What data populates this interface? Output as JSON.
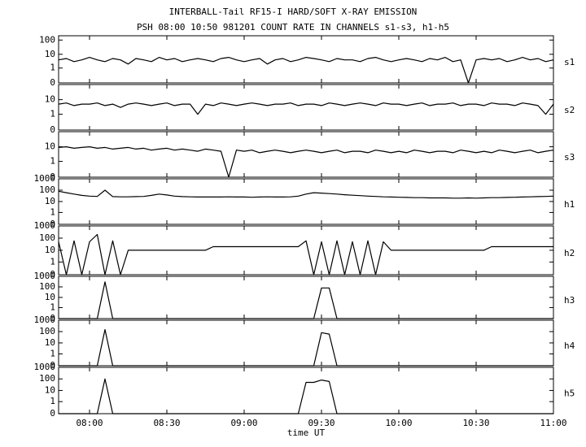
{
  "chart_data": {
    "type": "line",
    "title": "INTERBALL-Tail RF15-I HARD/SOFT X-RAY EMISSION",
    "subtitle": "PSH 08:00 10:50 981201  COUNT RATE IN CHANNELS s1-s3, h1-h5",
    "xlabel": "time UT",
    "xlim": [
      468,
      660
    ],
    "xticks": [
      {
        "value": 480,
        "label": "08:00"
      },
      {
        "value": 510,
        "label": "08:30"
      },
      {
        "value": 540,
        "label": "09:00"
      },
      {
        "value": 570,
        "label": "09:30"
      },
      {
        "value": 600,
        "label": "10:00"
      },
      {
        "value": 630,
        "label": "10:30"
      },
      {
        "value": 660,
        "label": "11:00"
      }
    ],
    "yscale": "log",
    "x": [
      468,
      471,
      474,
      477,
      480,
      483,
      486,
      489,
      492,
      495,
      498,
      501,
      504,
      507,
      510,
      513,
      516,
      519,
      522,
      525,
      528,
      531,
      534,
      537,
      540,
      543,
      546,
      549,
      552,
      555,
      558,
      561,
      564,
      567,
      570,
      573,
      576,
      579,
      582,
      585,
      588,
      591,
      594,
      597,
      600,
      603,
      606,
      609,
      612,
      615,
      618,
      621,
      624,
      627,
      630,
      633,
      636,
      639,
      642,
      645,
      648,
      651,
      654,
      657,
      660
    ],
    "series": [
      {
        "name": "s1",
        "color": "#000000",
        "ylim": [
          0,
          200
        ],
        "yticks": [
          0,
          1,
          10,
          100
        ],
        "values": [
          4,
          5,
          3,
          4,
          6,
          4,
          3,
          5,
          4,
          2,
          5,
          4,
          3,
          6,
          4,
          5,
          3,
          4,
          5,
          4,
          3,
          5,
          6,
          4,
          3,
          4,
          5,
          2,
          4,
          5,
          3,
          4,
          6,
          5,
          4,
          3,
          5,
          4,
          4,
          3,
          5,
          6,
          4,
          3,
          4,
          5,
          4,
          3,
          5,
          4,
          6,
          3,
          4,
          0,
          4,
          5,
          4,
          5,
          3,
          4,
          6,
          4,
          5,
          3,
          4
        ]
      },
      {
        "name": "s2",
        "color": "#000000",
        "ylim": [
          0,
          100
        ],
        "yticks": [
          0,
          1,
          10
        ],
        "values": [
          5,
          6,
          4,
          5,
          5,
          6,
          4,
          5,
          3,
          5,
          6,
          5,
          4,
          5,
          6,
          4,
          5,
          5,
          1,
          5,
          4,
          6,
          5,
          4,
          5,
          6,
          5,
          4,
          5,
          5,
          6,
          4,
          5,
          5,
          4,
          6,
          5,
          4,
          5,
          6,
          5,
          4,
          6,
          5,
          5,
          4,
          5,
          6,
          4,
          5,
          5,
          6,
          4,
          5,
          5,
          4,
          6,
          5,
          5,
          4,
          6,
          5,
          4,
          1,
          5
        ]
      },
      {
        "name": "s3",
        "color": "#000000",
        "ylim": [
          0,
          100
        ],
        "yticks": [
          0,
          1,
          10
        ],
        "values": [
          9,
          10,
          8,
          9,
          10,
          8,
          9,
          7,
          8,
          9,
          7,
          8,
          6,
          7,
          8,
          6,
          7,
          6,
          5,
          7,
          6,
          5,
          0,
          6,
          5,
          6,
          4,
          5,
          6,
          5,
          4,
          5,
          6,
          5,
          4,
          5,
          6,
          4,
          5,
          5,
          4,
          6,
          5,
          4,
          5,
          4,
          6,
          5,
          4,
          5,
          5,
          4,
          6,
          5,
          4,
          5,
          4,
          6,
          5,
          4,
          5,
          6,
          4,
          5,
          6
        ]
      },
      {
        "name": "h1",
        "color": "#000000",
        "ylim": [
          0,
          1000
        ],
        "yticks": [
          0,
          1,
          10,
          100,
          1000
        ],
        "values": [
          80,
          60,
          45,
          35,
          30,
          28,
          100,
          27,
          26,
          26,
          27,
          28,
          35,
          45,
          38,
          30,
          27,
          26,
          25,
          25,
          25,
          25,
          26,
          25,
          25,
          24,
          25,
          26,
          25,
          25,
          26,
          30,
          45,
          60,
          55,
          50,
          45,
          40,
          36,
          33,
          30,
          28,
          26,
          25,
          24,
          23,
          22,
          22,
          21,
          21,
          21,
          20,
          20,
          21,
          20,
          21,
          22,
          22,
          23,
          24,
          25,
          26,
          27,
          28,
          30
        ]
      },
      {
        "name": "h2",
        "color": "#000000",
        "ylim": [
          0,
          1000
        ],
        "yticks": [
          0,
          1,
          10,
          100,
          1000
        ],
        "values": [
          50,
          0,
          60,
          0,
          50,
          200,
          0,
          60,
          0,
          10,
          10,
          10,
          10,
          10,
          10,
          10,
          10,
          10,
          10,
          10,
          20,
          20,
          20,
          20,
          20,
          20,
          20,
          20,
          20,
          20,
          20,
          20,
          60,
          0,
          50,
          0,
          60,
          0,
          50,
          0,
          60,
          0,
          50,
          10,
          10,
          10,
          10,
          10,
          10,
          10,
          10,
          10,
          10,
          10,
          10,
          10,
          20,
          20,
          20,
          20,
          20,
          20,
          20,
          20,
          20
        ]
      },
      {
        "name": "h3",
        "color": "#000000",
        "ylim": [
          0,
          1000
        ],
        "yticks": [
          0,
          1,
          10,
          100,
          1000
        ],
        "values": [
          0,
          0,
          0,
          0,
          0,
          0,
          300,
          0,
          0,
          0,
          0,
          0,
          0,
          0,
          0,
          0,
          0,
          0,
          0,
          0,
          0,
          0,
          0,
          0,
          0,
          0,
          0,
          0,
          0,
          0,
          0,
          0,
          0,
          0,
          80,
          80,
          0,
          0,
          0,
          0,
          0,
          0,
          0,
          0,
          0,
          0,
          0,
          0,
          0,
          0,
          0,
          0,
          0,
          0,
          0,
          0,
          0,
          0,
          0,
          0,
          0,
          0,
          0,
          0,
          0
        ]
      },
      {
        "name": "h4",
        "color": "#000000",
        "ylim": [
          0,
          1000
        ],
        "yticks": [
          0,
          1,
          10,
          100,
          1000
        ],
        "values": [
          0,
          0,
          0,
          0,
          0,
          0,
          150,
          0,
          0,
          0,
          0,
          0,
          0,
          0,
          0,
          0,
          0,
          0,
          0,
          0,
          0,
          0,
          0,
          0,
          0,
          0,
          0,
          0,
          0,
          0,
          0,
          0,
          0,
          0,
          80,
          60,
          0,
          0,
          0,
          0,
          0,
          0,
          0,
          0,
          0,
          0,
          0,
          0,
          0,
          0,
          0,
          0,
          0,
          0,
          0,
          0,
          0,
          0,
          0,
          0,
          0,
          0,
          0,
          0,
          0
        ]
      },
      {
        "name": "h5",
        "color": "#000000",
        "ylim": [
          0,
          1000
        ],
        "yticks": [
          0,
          1,
          10,
          100,
          1000
        ],
        "values": [
          0,
          0,
          0,
          0,
          0,
          0,
          100,
          0,
          0,
          0,
          0,
          0,
          0,
          0,
          0,
          0,
          0,
          0,
          0,
          0,
          0,
          0,
          0,
          0,
          0,
          0,
          0,
          0,
          0,
          0,
          0,
          0,
          50,
          50,
          80,
          60,
          0,
          0,
          0,
          0,
          0,
          0,
          0,
          0,
          0,
          0,
          0,
          0,
          0,
          0,
          0,
          0,
          0,
          0,
          0,
          0,
          0,
          0,
          0,
          0,
          0,
          0,
          0,
          0,
          0
        ]
      }
    ]
  }
}
